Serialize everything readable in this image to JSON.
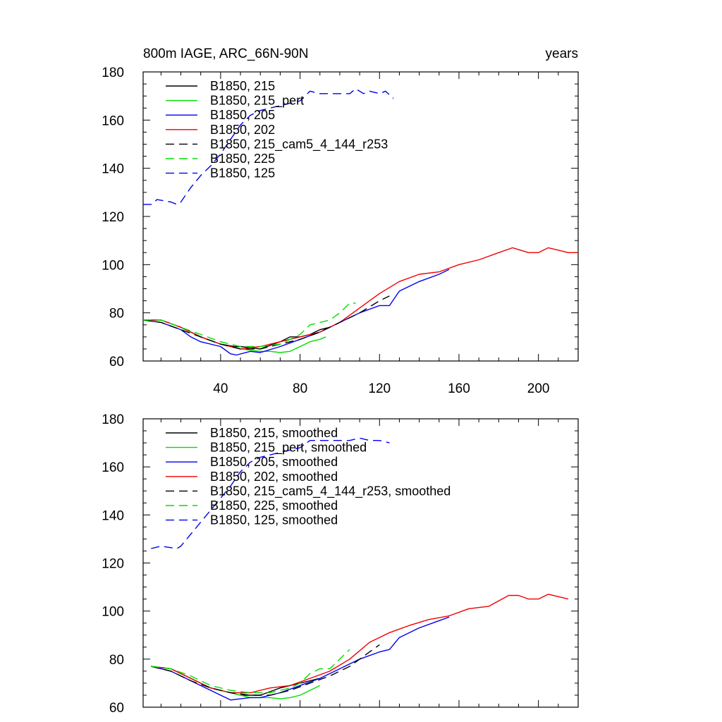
{
  "header": {
    "title": "800m IAGE, ARC_66N-90N",
    "units": "years"
  },
  "chart_data": [
    {
      "type": "line",
      "panel": "top",
      "xlim": [
        1,
        220
      ],
      "ylim": [
        60,
        180
      ],
      "xticks": [
        40,
        80,
        120,
        160,
        200
      ],
      "yticks": [
        60,
        80,
        100,
        120,
        140,
        160,
        180
      ],
      "legend_position": "top-left",
      "series": [
        {
          "name": "B1850, 215",
          "color": "#000000",
          "dash": "solid",
          "x": [
            1,
            10,
            20,
            30,
            40,
            47,
            50,
            60,
            70,
            75,
            80,
            85,
            90,
            95
          ],
          "y": [
            77,
            77,
            74,
            70,
            67,
            66,
            66,
            65,
            68,
            70,
            70,
            71,
            73,
            74
          ]
        },
        {
          "name": "B1850, 215_pert",
          "color": "#00dd00",
          "dash": "solid",
          "x": [
            1,
            10,
            20,
            30,
            40,
            50,
            55,
            60,
            65,
            70,
            75,
            80,
            85,
            90,
            93
          ],
          "y": [
            77,
            77,
            74,
            70,
            67,
            65,
            64.5,
            64,
            64,
            63.5,
            64,
            66,
            68,
            69,
            70
          ]
        },
        {
          "name": "B1850, 205",
          "color": "#0000ee",
          "dash": "solid",
          "x": [
            1,
            10,
            20,
            25,
            30,
            40,
            45,
            48,
            55,
            60,
            70,
            80,
            90,
            100,
            110,
            120,
            125,
            130,
            140,
            150,
            155
          ],
          "y": [
            77,
            76,
            73,
            70,
            68,
            66,
            63,
            62.5,
            64,
            63.5,
            66,
            69,
            72,
            76,
            80,
            83,
            83,
            89,
            93,
            96,
            98
          ]
        },
        {
          "name": "B1850, 202",
          "color": "#ee0000",
          "dash": "solid",
          "x": [
            1,
            10,
            20,
            30,
            40,
            50,
            60,
            70,
            80,
            90,
            100,
            110,
            120,
            130,
            140,
            150,
            160,
            170,
            180,
            187,
            195,
            200,
            205,
            210,
            215,
            220
          ],
          "y": [
            77,
            77,
            74,
            70,
            67,
            65,
            66,
            68,
            70,
            72,
            76,
            82,
            88,
            93,
            96,
            97,
            100,
            102,
            105,
            107,
            105,
            105,
            107,
            106,
            105,
            105
          ]
        },
        {
          "name": "B1850, 215_cam5_4_144_r253",
          "color": "#000000",
          "dash": "dashed",
          "x": [
            1,
            10,
            20,
            30,
            40,
            50,
            60,
            70,
            80,
            90,
            100,
            110,
            120,
            125
          ],
          "y": [
            77,
            76,
            73,
            70,
            67,
            65,
            65,
            67,
            69,
            72,
            76,
            80,
            85,
            87
          ]
        },
        {
          "name": "B1850, 225",
          "color": "#00dd00",
          "dash": "dashed",
          "x": [
            1,
            10,
            20,
            30,
            40,
            50,
            60,
            70,
            75,
            80,
            85,
            90,
            95,
            100,
            105,
            108
          ],
          "y": [
            77,
            77,
            74,
            71,
            68,
            66,
            66,
            67,
            69,
            71,
            75,
            76,
            77,
            80,
            84,
            84
          ]
        },
        {
          "name": "B1850, 125",
          "color": "#0000ee",
          "dash": "dashed",
          "x": [
            1,
            5,
            8,
            15,
            18,
            20,
            25,
            30,
            35,
            40,
            45,
            50,
            55,
            60,
            70,
            80,
            85,
            90,
            95,
            100,
            105,
            108,
            112,
            115,
            120,
            123,
            127
          ],
          "y": [
            125,
            125,
            127,
            126,
            125,
            126,
            132,
            137,
            141,
            146,
            152,
            158,
            162,
            164,
            166,
            168,
            172,
            171,
            171,
            171,
            171,
            173,
            171,
            172,
            171,
            172,
            169
          ]
        }
      ]
    },
    {
      "type": "line",
      "panel": "bottom",
      "xlim": [
        1,
        220
      ],
      "ylim": [
        60,
        180
      ],
      "xticks": [
        40,
        80,
        120,
        160,
        200
      ],
      "yticks": [
        60,
        80,
        100,
        120,
        140,
        160,
        180
      ],
      "legend_position": "top-left",
      "series": [
        {
          "name": "B1850, 215, smoothed",
          "color": "#000000",
          "dash": "solid",
          "x": [
            5,
            15,
            25,
            35,
            45,
            50,
            60,
            70,
            80,
            85,
            90
          ],
          "y": [
            77,
            76,
            72,
            68,
            66,
            65,
            65,
            68,
            70,
            71,
            72
          ]
        },
        {
          "name": "B1850, 215_pert, smoothed",
          "color": "#00dd00",
          "dash": "solid",
          "x": [
            5,
            15,
            25,
            35,
            45,
            55,
            60,
            65,
            70,
            75,
            80,
            85,
            90
          ],
          "y": [
            77,
            76,
            72,
            68,
            66,
            64,
            64,
            64,
            63.5,
            64,
            65,
            67,
            69
          ]
        },
        {
          "name": "B1850, 205, smoothed",
          "color": "#0000ee",
          "dash": "solid",
          "x": [
            5,
            15,
            25,
            35,
            40,
            45,
            50,
            55,
            60,
            70,
            80,
            90,
            100,
            110,
            120,
            125,
            130,
            140,
            150,
            155
          ],
          "y": [
            77,
            75,
            71,
            67,
            65,
            63,
            63.5,
            64,
            64,
            66,
            69,
            72,
            76,
            80,
            83,
            84,
            89,
            93,
            96,
            97.5
          ]
        },
        {
          "name": "B1850, 202, smoothed",
          "color": "#ee0000",
          "dash": "solid",
          "x": [
            5,
            15,
            25,
            35,
            45,
            55,
            65,
            75,
            85,
            95,
            105,
            115,
            125,
            135,
            145,
            155,
            165,
            175,
            185,
            190,
            195,
            200,
            205,
            210,
            215
          ],
          "y": [
            77,
            76,
            72,
            68,
            66,
            66,
            68,
            69,
            72,
            75,
            80,
            87,
            91,
            94,
            96.5,
            98,
            101,
            102,
            106.5,
            106.5,
            105,
            105,
            107,
            106,
            105
          ]
        },
        {
          "name": "B1850, 215_cam5_4_144_r253, smoothed",
          "color": "#000000",
          "dash": "dashed",
          "x": [
            5,
            15,
            25,
            35,
            45,
            55,
            65,
            75,
            85,
            95,
            105,
            115,
            120
          ],
          "y": [
            77,
            75,
            71,
            68,
            66,
            65,
            65,
            67,
            70,
            73,
            77,
            83,
            86
          ]
        },
        {
          "name": "B1850, 225, smoothed",
          "color": "#00dd00",
          "dash": "dashed",
          "x": [
            5,
            15,
            25,
            35,
            45,
            55,
            65,
            75,
            80,
            85,
            90,
            95,
            100,
            105
          ],
          "y": [
            77,
            76,
            73,
            69,
            67,
            66,
            66,
            68,
            70,
            74,
            76,
            76,
            80,
            84
          ]
        },
        {
          "name": "B1850, 125, smoothed",
          "color": "#0000ee",
          "dash": "dashed",
          "x": [
            5,
            10,
            18,
            20,
            25,
            30,
            35,
            40,
            45,
            50,
            55,
            60,
            70,
            80,
            85,
            90,
            95,
            100,
            105,
            110,
            115,
            120,
            125
          ],
          "y": [
            126,
            127,
            126,
            127,
            132,
            137,
            142,
            147,
            152,
            158,
            162,
            164,
            166,
            168,
            171,
            171,
            171,
            171,
            171,
            172,
            171,
            171,
            170
          ]
        }
      ]
    }
  ]
}
